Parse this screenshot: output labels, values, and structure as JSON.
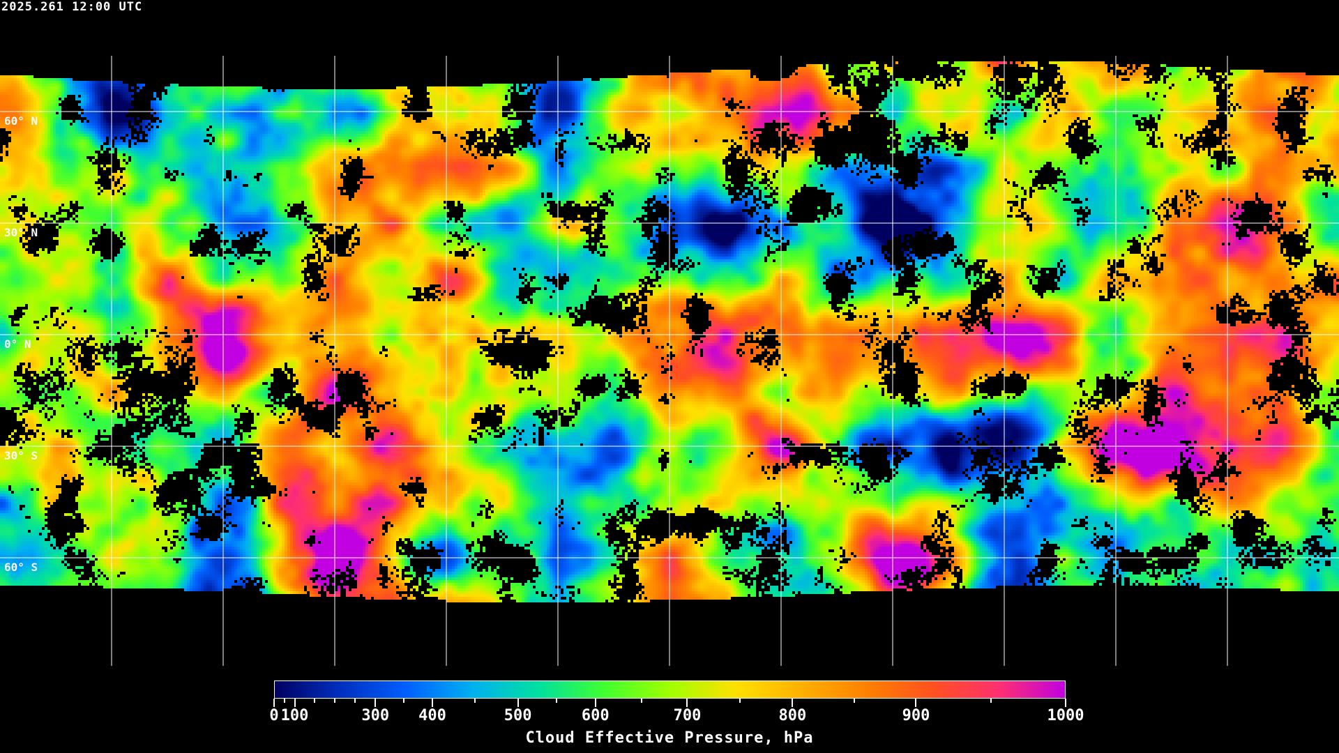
{
  "title": "2025.261 12:00 UTC",
  "map": {
    "projection": "equirectangular",
    "latitude_labels": [
      "60° N",
      "30° N",
      "0° N",
      "30° S",
      "60° S"
    ],
    "latitude_values": [
      60,
      30,
      0,
      -30,
      -60
    ],
    "longitude_grid_spacing_deg": 30,
    "gridline_color": "#ffffff",
    "coastline_color": "#ffffff",
    "no_data_color": "#000000"
  },
  "colorbar": {
    "label": "Cloud Effective Pressure, hPa",
    "range": [
      0,
      1000
    ],
    "tick_labels": [
      "0",
      "100",
      "300",
      "400",
      "500",
      "600",
      "700",
      "800",
      "900",
      "1000"
    ],
    "tick_values": [
      0,
      100,
      300,
      400,
      500,
      600,
      700,
      800,
      900,
      1000
    ],
    "minor_ticks": [
      50,
      150,
      200,
      250,
      350,
      450,
      550,
      650,
      750,
      850,
      950
    ],
    "colors": [
      "#000060",
      "#0030c0",
      "#0060ff",
      "#00b0f0",
      "#00e0a0",
      "#40ff30",
      "#a0ff00",
      "#ffe000",
      "#ffb000",
      "#ff8000",
      "#ff5020",
      "#ff3070",
      "#c000e0"
    ]
  }
}
